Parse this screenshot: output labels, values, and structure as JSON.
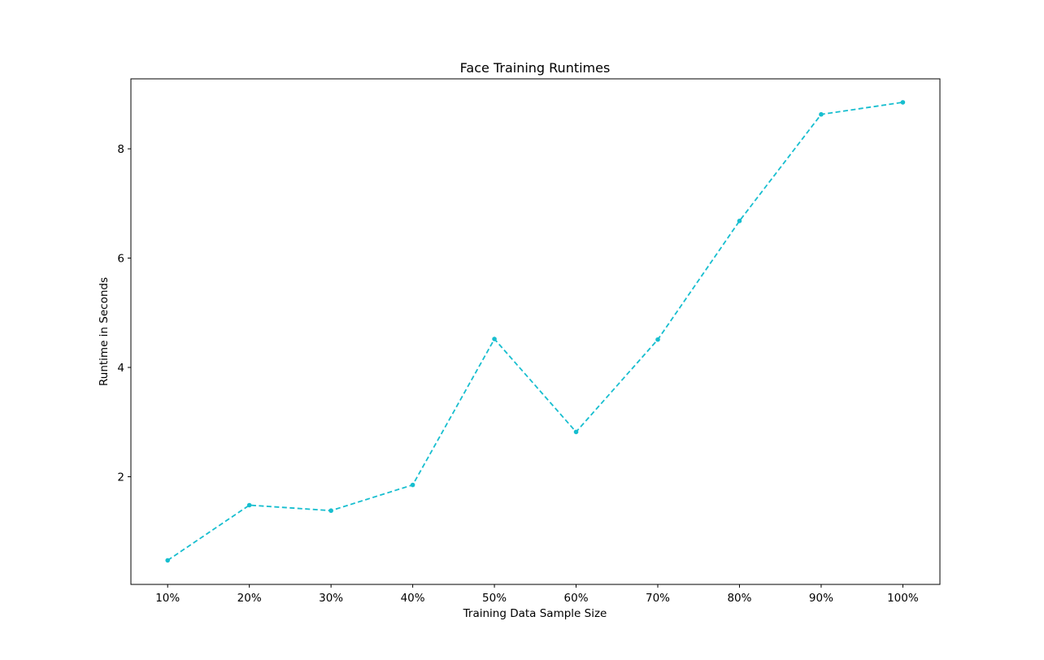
{
  "chart_data": {
    "type": "line",
    "title": "Face Training Runtimes",
    "xlabel": "Training Data Sample Size",
    "ylabel": "Runtime in Seconds",
    "categories": [
      "10%",
      "20%",
      "30%",
      "40%",
      "50%",
      "60%",
      "70%",
      "80%",
      "90%",
      "100%"
    ],
    "series": [
      {
        "values": [
          0.47,
          1.48,
          1.38,
          1.85,
          4.52,
          2.82,
          4.51,
          6.68,
          8.63,
          8.85
        ],
        "color": "#17becf",
        "line_style": "dashed",
        "marker": "dot"
      }
    ],
    "yticks": [
      2,
      4,
      6,
      8
    ],
    "ylim": [
      0.03,
      9.28
    ],
    "grid": false,
    "legend": "none"
  }
}
